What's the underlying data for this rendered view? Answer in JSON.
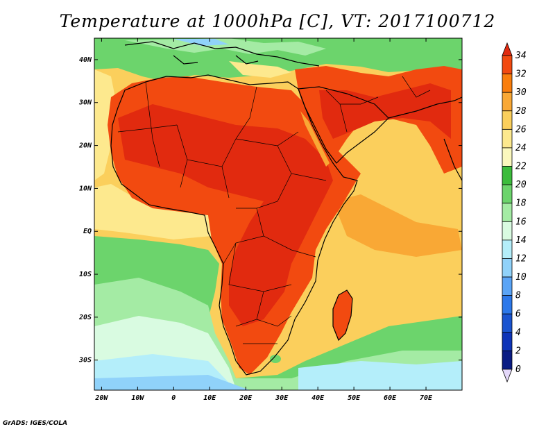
{
  "title": "Temperature at 1000hPa [C], VT: 2017100712",
  "credit": "GrADS: IGES/COLA",
  "map": {
    "lon_range": [
      -22,
      80
    ],
    "lat_range": [
      -37,
      45
    ],
    "lon_ticks": [
      {
        "value": -20,
        "label": "20W"
      },
      {
        "value": -10,
        "label": "10W"
      },
      {
        "value": 0,
        "label": "0"
      },
      {
        "value": 10,
        "label": "10E"
      },
      {
        "value": 20,
        "label": "20E"
      },
      {
        "value": 30,
        "label": "30E"
      },
      {
        "value": 40,
        "label": "40E"
      },
      {
        "value": 50,
        "label": "50E"
      },
      {
        "value": 60,
        "label": "60E"
      },
      {
        "value": 70,
        "label": "70E"
      }
    ],
    "lat_ticks": [
      {
        "value": 40,
        "label": "40N"
      },
      {
        "value": 30,
        "label": "30N"
      },
      {
        "value": 20,
        "label": "20N"
      },
      {
        "value": 10,
        "label": "10N"
      },
      {
        "value": 0,
        "label": "EQ"
      },
      {
        "value": -10,
        "label": "10S"
      },
      {
        "value": -20,
        "label": "20S"
      },
      {
        "value": -30,
        "label": "30S"
      }
    ]
  },
  "colorbar": {
    "labels": [
      "34",
      "32",
      "30",
      "28",
      "26",
      "24",
      "22",
      "20",
      "18",
      "16",
      "14",
      "12",
      "10",
      "8",
      "6",
      "4",
      "2",
      "0"
    ],
    "colors": [
      "#e12a0f",
      "#f24a10",
      "#fa7e0c",
      "#f9a835",
      "#fbcf5c",
      "#fde98e",
      "#fbf8bd",
      "#3cbc3c",
      "#6cd46c",
      "#a4eba4",
      "#d9fbe1",
      "#b4eefa",
      "#90d2fa",
      "#5aa4f6",
      "#2c78ea",
      "#1a54d0",
      "#0e34b8",
      "#0a1c84",
      "#e4d8fa"
    ]
  }
}
